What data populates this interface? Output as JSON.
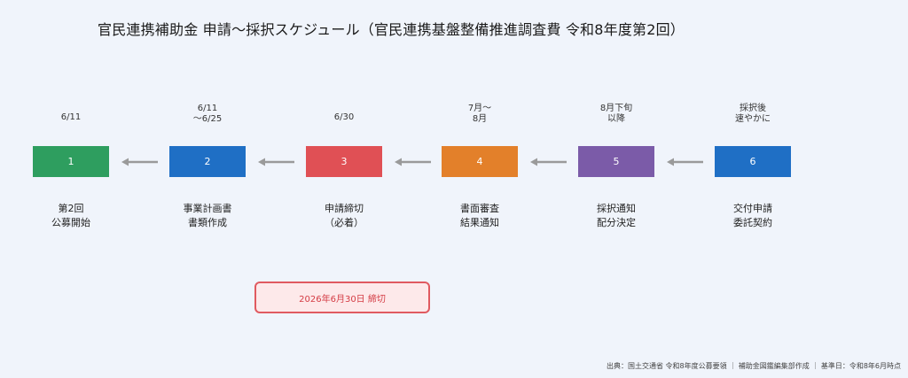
{
  "title": "官民連携補助金 申請〜採択スケジュール（官民連携基盤整備推進調査費 令和8年度第2回）",
  "steps": [
    {
      "number": "1",
      "date_line1": "6/11",
      "date_line2": "",
      "desc_line1": "第2回",
      "desc_line2": "公募開始",
      "color": "#2e9e5f"
    },
    {
      "number": "2",
      "date_line1": "6/11",
      "date_line2": "〜6/25",
      "desc_line1": "事業計画書",
      "desc_line2": "書類作成",
      "color": "#1f6fc5"
    },
    {
      "number": "3",
      "date_line1": "6/30",
      "date_line2": "",
      "desc_line1": "申請締切",
      "desc_line2": "（必着）",
      "color": "#e05055"
    },
    {
      "number": "4",
      "date_line1": "7月〜",
      "date_line2": "8月",
      "desc_line1": "書面審査",
      "desc_line2": "結果通知",
      "color": "#e3802a"
    },
    {
      "number": "5",
      "date_line1": "8月下旬",
      "date_line2": "以降",
      "desc_line1": "採択通知",
      "desc_line2": "配分決定",
      "color": "#7b5ba8"
    },
    {
      "number": "6",
      "date_line1": "採択後",
      "date_line2": "速やかに",
      "desc_line1": "交付申請",
      "desc_line2": "委託契約",
      "color": "#1f6fc5"
    }
  ],
  "arrow_color": "#9a9a9a",
  "deadline_note": "2026年6月30日 締切",
  "source_text": "出典：国土交通省 令和8年度公募要領 ｜ 補助金図鑑編集部作成 ｜ 基準日：令和8年6月時点"
}
